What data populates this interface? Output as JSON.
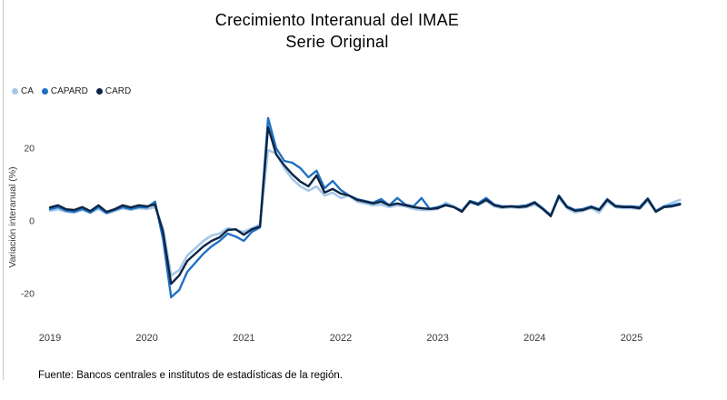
{
  "title": {
    "line1": "Crecimiento Interanual del IMAE",
    "line2": "Serie Original"
  },
  "footer": "Fuente: Bancos centrales e institutos de estadísticas de la región.",
  "chart_data": {
    "type": "line",
    "title": "Crecimiento Interanual del IMAE",
    "subtitle": "Serie Original",
    "ylabel": "Variación interanual (%)",
    "xlabel": "",
    "x_start": "2019-01",
    "x_frequency": "monthly",
    "x_year_labels": [
      "2019",
      "2020",
      "2021",
      "2022",
      "2023",
      "2024",
      "2025"
    ],
    "y_ticks": [
      20,
      0,
      -20
    ],
    "ylim": [
      -25,
      31
    ],
    "grid": false,
    "legend_position": "top-left",
    "series": [
      {
        "name": "CA",
        "color": "#A5C8E9",
        "values": [
          2.8,
          3.2,
          2.5,
          2.3,
          3.0,
          2.2,
          3.3,
          2.0,
          2.7,
          3.5,
          3.0,
          3.5,
          3.3,
          3.8,
          -2.0,
          -15.0,
          -13.5,
          -9.5,
          -7.5,
          -5.5,
          -4.0,
          -3.5,
          -2.0,
          -2.5,
          -3.0,
          -2.0,
          -1.0,
          19.5,
          18.5,
          14.5,
          11.5,
          9.5,
          8.3,
          9.5,
          7.0,
          7.8,
          6.3,
          7.0,
          5.3,
          4.8,
          4.3,
          4.5,
          3.8,
          4.3,
          4.0,
          3.3,
          3.0,
          3.0,
          3.3,
          5.0,
          4.0,
          2.8,
          5.0,
          4.3,
          5.5,
          4.0,
          3.5,
          3.8,
          3.5,
          3.8,
          4.5,
          3.3,
          1.8,
          6.3,
          3.5,
          2.3,
          2.8,
          3.5,
          2.3,
          5.3,
          3.8,
          3.5,
          3.5,
          3.3,
          5.5,
          2.8,
          4.0,
          5.0,
          5.8
        ]
      },
      {
        "name": "CAPARD",
        "color": "#1F70C1",
        "values": [
          3.2,
          3.8,
          2.8,
          2.5,
          3.3,
          2.3,
          3.8,
          2.2,
          3.0,
          3.8,
          3.3,
          3.8,
          3.7,
          5.3,
          -5.0,
          -21.0,
          -19.0,
          -14.0,
          -11.5,
          -9.0,
          -7.0,
          -5.5,
          -3.5,
          -4.3,
          -5.5,
          -3.0,
          -1.8,
          28.3,
          20.0,
          16.5,
          16.0,
          14.5,
          12.0,
          13.8,
          9.0,
          11.0,
          8.5,
          7.0,
          6.0,
          5.5,
          5.0,
          6.0,
          4.3,
          6.3,
          4.5,
          4.0,
          6.3,
          3.3,
          3.8,
          4.5,
          3.8,
          2.8,
          5.5,
          4.8,
          6.3,
          4.5,
          4.0,
          4.0,
          4.0,
          4.3,
          5.2,
          3.5,
          1.5,
          7.0,
          4.0,
          3.0,
          3.3,
          4.0,
          3.2,
          6.0,
          4.2,
          4.0,
          4.0,
          3.8,
          6.2,
          2.7,
          4.0,
          4.3,
          4.8
        ]
      },
      {
        "name": "CARD",
        "color": "#0E2443",
        "values": [
          3.7,
          4.3,
          3.2,
          3.0,
          3.8,
          2.7,
          4.3,
          2.5,
          3.2,
          4.3,
          3.7,
          4.3,
          4.0,
          4.5,
          -3.0,
          -17.3,
          -15.0,
          -11.0,
          -9.0,
          -7.0,
          -5.5,
          -4.5,
          -2.5,
          -2.3,
          -3.8,
          -2.3,
          -1.5,
          25.8,
          18.3,
          15.3,
          12.8,
          10.8,
          9.5,
          12.5,
          7.8,
          8.8,
          7.5,
          7.0,
          5.8,
          5.3,
          4.8,
          5.3,
          4.3,
          4.8,
          4.3,
          3.8,
          3.5,
          3.3,
          3.5,
          4.3,
          3.8,
          2.5,
          5.3,
          4.5,
          5.8,
          4.3,
          3.8,
          4.0,
          3.8,
          4.0,
          5.0,
          3.3,
          1.3,
          6.8,
          3.8,
          2.8,
          3.0,
          3.8,
          3.0,
          5.8,
          4.0,
          3.8,
          3.8,
          3.5,
          6.0,
          2.5,
          3.8,
          4.0,
          4.5
        ]
      }
    ]
  }
}
